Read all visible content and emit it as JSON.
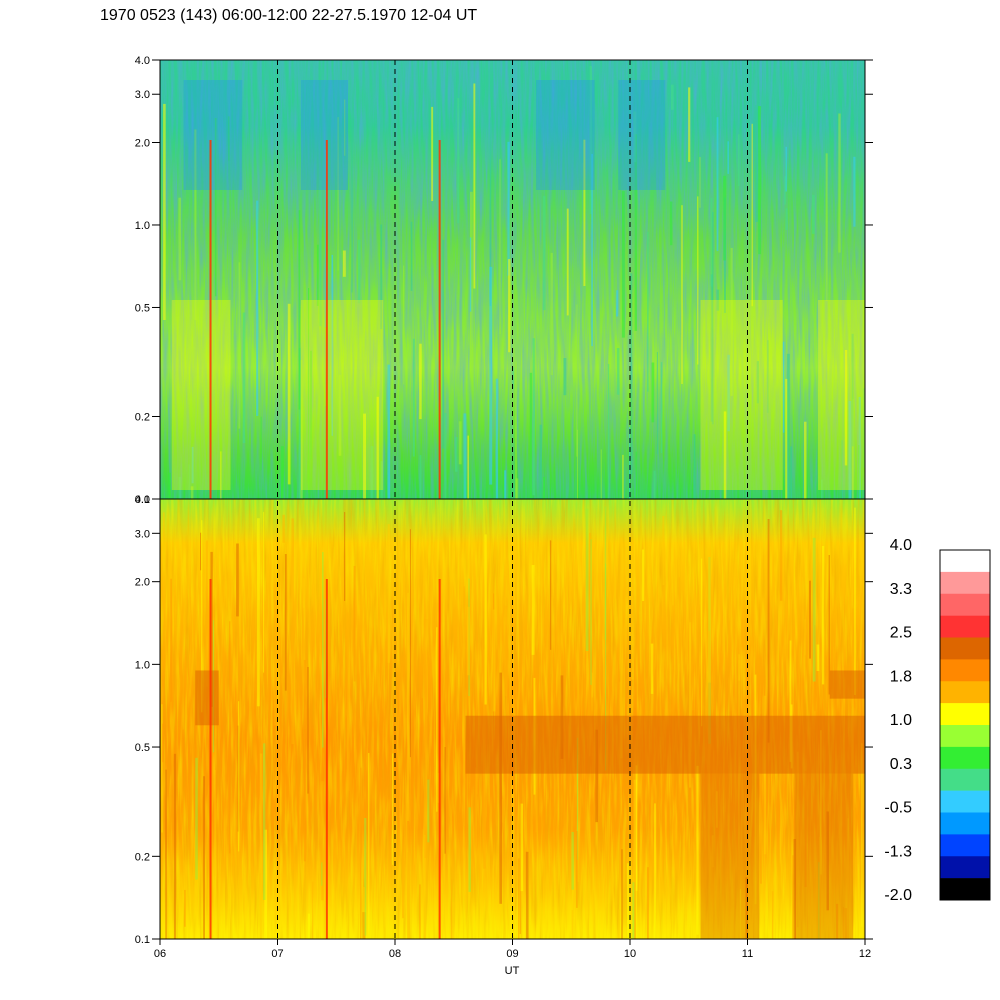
{
  "title": "1970 0523 (143) 06:00-12:00 22-27.5.1970  12-04 UT",
  "xlabel": "UT",
  "chart_data": {
    "type": "heatmap",
    "title": "1970 0523 (143) 06:00-12:00 22-27.5.1970  12-04 UT",
    "xlabel": "UT",
    "x_ticks": [
      "06",
      "07",
      "08",
      "09",
      "10",
      "11",
      "12"
    ],
    "x_range": [
      6,
      12
    ],
    "y_scale": "log",
    "panels": [
      {
        "name": "",
        "y_range": [
          0.1,
          4.0
        ],
        "y_ticks": [
          "4.0",
          "3.0",
          "2.0",
          "1.0",
          "0.5",
          "0.2",
          "0.1"
        ],
        "y_values": [
          4.0,
          3.0,
          2.0,
          1.0,
          0.5,
          0.2,
          0.1
        ],
        "dominant_levels": [
          "0.3",
          "1.0",
          "-0.5"
        ],
        "bright_lines_ut": [
          6.43,
          7.42,
          8.38
        ]
      },
      {
        "name": "",
        "y_range": [
          0.1,
          4.0
        ],
        "y_ticks": [
          "4.0",
          "3.0",
          "2.0",
          "1.0",
          "0.5",
          "0.2",
          "0.1"
        ],
        "y_values": [
          4.0,
          3.0,
          2.0,
          1.0,
          0.5,
          0.2,
          0.1
        ],
        "dominant_levels": [
          "1.0",
          "1.8",
          "2.5"
        ],
        "bright_lines_ut": [
          6.43,
          7.42,
          8.38
        ]
      }
    ],
    "dashed_lines_ut": [
      7,
      8,
      9,
      10,
      11
    ],
    "colorbar": {
      "labels": [
        "4.0",
        "3.3",
        "2.5",
        "1.8",
        "1.0",
        "0.3",
        "-0.5",
        "-1.3",
        "-2.0"
      ],
      "colors": [
        "#ffffff",
        "#ff9999",
        "#ff6666",
        "#ff3333",
        "#dd6600",
        "#ff8800",
        "#ffb300",
        "#ffff00",
        "#99ff33",
        "#33ee33",
        "#44dd88",
        "#33ccff",
        "#0099ff",
        "#0044ff",
        "#0011aa",
        "#000000"
      ]
    }
  }
}
